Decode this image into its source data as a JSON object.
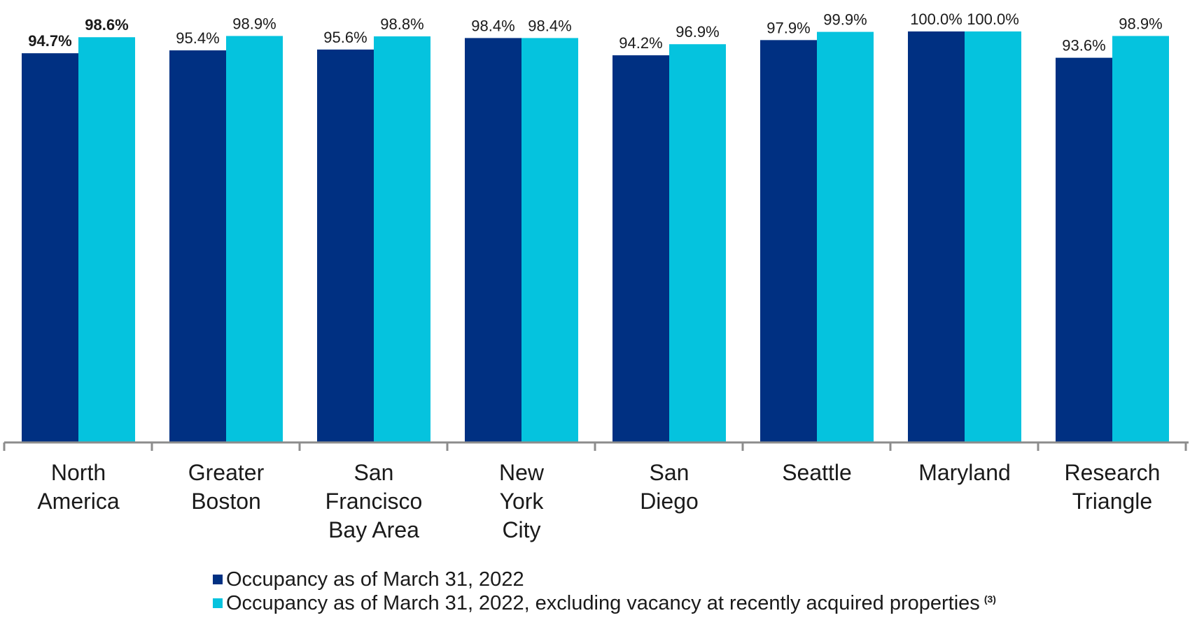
{
  "chart_data": {
    "type": "bar",
    "categories": [
      [
        "North",
        "America"
      ],
      [
        "Greater",
        "Boston"
      ],
      [
        "San",
        "Francisco",
        "Bay Area"
      ],
      [
        "New",
        "York",
        "City"
      ],
      [
        "San",
        "Diego"
      ],
      [
        "Seattle"
      ],
      [
        "Maryland"
      ],
      [
        "Research",
        "Triangle"
      ]
    ],
    "series": [
      {
        "name": "Occupancy as of March 31, 2022",
        "color": "#003082",
        "values": [
          94.7,
          95.4,
          95.6,
          98.4,
          94.2,
          97.9,
          100.0,
          93.6
        ],
        "labels": [
          "94.7%",
          "95.4%",
          "95.6%",
          "98.4%",
          "94.2%",
          "97.9%",
          "100.0%",
          "93.6%"
        ]
      },
      {
        "name": "Occupancy as of March 31, 2022, excluding vacancy at recently acquired properties",
        "color": "#05C3DE",
        "values": [
          98.6,
          98.9,
          98.8,
          98.4,
          96.9,
          99.9,
          100.0,
          98.9
        ],
        "labels": [
          "98.6%",
          "98.9%",
          "98.8%",
          "98.4%",
          "96.9%",
          "99.9%",
          "100.0%",
          "98.9%"
        ]
      }
    ],
    "bold_labels_category_index": 0,
    "ylim": [
      0,
      100
    ],
    "title": "",
    "xlabel": "",
    "ylabel": "",
    "grid": false,
    "legend_position": "bottom",
    "footnote_marker": "(3)"
  }
}
